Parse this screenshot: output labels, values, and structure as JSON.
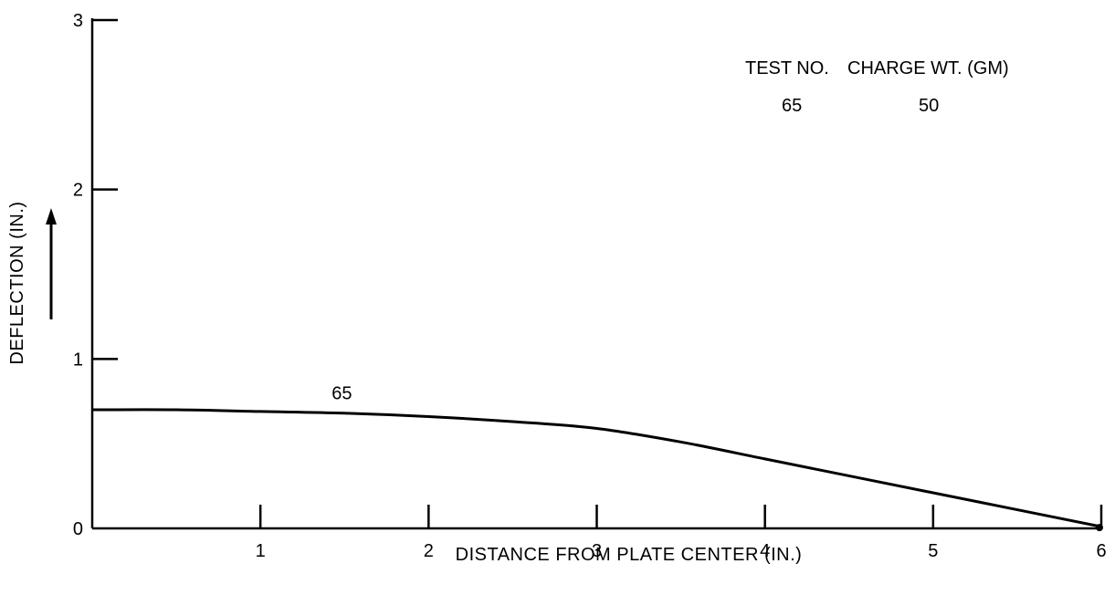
{
  "chart_data": {
    "type": "line",
    "xlabel": "DISTANCE FROM PLATE CENTER (IN.)",
    "ylabel": "DEFLECTION (IN.)",
    "xlim": [
      0,
      6
    ],
    "ylim": [
      0,
      3
    ],
    "x_ticks": [
      "1",
      "2",
      "3",
      "4",
      "5",
      "6"
    ],
    "y_ticks": [
      "0",
      "1",
      "2",
      "3"
    ],
    "grid": false,
    "legend": {
      "placement": "top-right",
      "headers": [
        "TEST NO.",
        "CHARGE WT. (GM)"
      ],
      "rows": [
        {
          "test_no": "65",
          "charge_wt": "50"
        }
      ]
    },
    "series": [
      {
        "name": "65",
        "x": [
          0,
          0.5,
          1,
          1.5,
          2,
          2.5,
          3,
          3.5,
          4,
          4.5,
          5,
          5.5,
          6
        ],
        "y": [
          0.7,
          0.7,
          0.69,
          0.68,
          0.66,
          0.63,
          0.59,
          0.51,
          0.41,
          0.31,
          0.21,
          0.11,
          0.01
        ]
      }
    ],
    "annotations": [
      {
        "text": "65",
        "x": 1.5,
        "y": 0.8
      }
    ]
  }
}
